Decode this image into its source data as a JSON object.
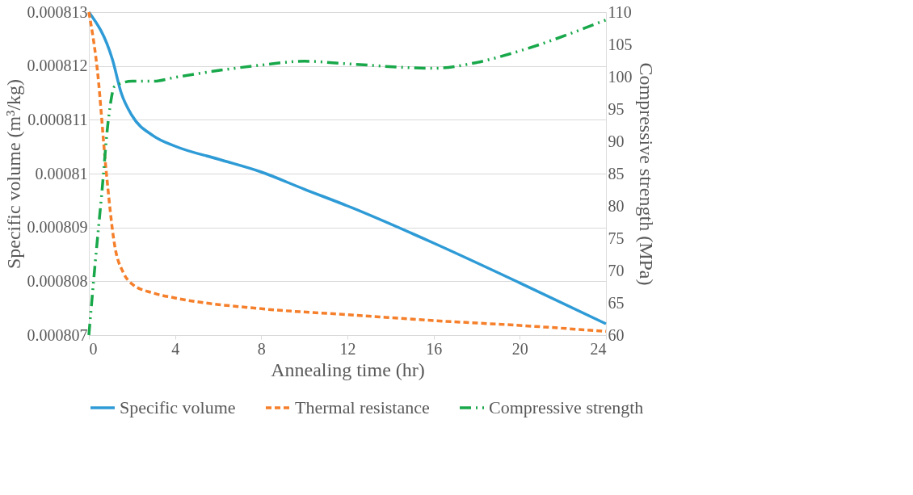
{
  "chart_data": {
    "type": "line",
    "xlabel": "Annealing time (hr)",
    "ylabel": "Specific volume (m³/kg)",
    "y2label": "Compressive strength (MPa)",
    "xlim": [
      0,
      24
    ],
    "xticks": [
      0,
      4,
      8,
      12,
      16,
      20,
      24
    ],
    "ylim": [
      0.000807,
      0.000813
    ],
    "yticks": [
      0.000807,
      0.000808,
      0.000809,
      0.00081,
      0.000811,
      0.000812,
      0.000813
    ],
    "y2lim": [
      60,
      110
    ],
    "y2ticks": [
      60,
      65,
      70,
      75,
      80,
      85,
      90,
      95,
      100,
      105,
      110
    ],
    "grid": "y",
    "legend": "bottom",
    "series": [
      {
        "name": "Specific volume",
        "color": "#2e9bd6",
        "line_style": "solid",
        "x": [
          0,
          1.1,
          1.5,
          2,
          3,
          4,
          6,
          8,
          10,
          12,
          16,
          20,
          24
        ],
        "values": [
          0.000813,
          0.00081211,
          0.0008115,
          0.00081108,
          0.0008107,
          0.00081051,
          0.00081027,
          0.00081003,
          0.00080971,
          0.0008094,
          0.00080871,
          0.00080797,
          0.00080721
        ]
      },
      {
        "name": "Thermal resistance",
        "color": "#f57f2a",
        "line_style": "dashed",
        "x": [
          0,
          0.4,
          0.8,
          1.2,
          1.6,
          2,
          3,
          4,
          8,
          12,
          16,
          20,
          24
        ],
        "values": [
          0.000813,
          0.0008119,
          0.00081006,
          0.00080866,
          0.00080816,
          0.00080795,
          0.00080778,
          0.00080769,
          0.00080749,
          0.00080738,
          0.00080727,
          0.00080718,
          0.00080707
        ]
      },
      {
        "name": "Compressive strength",
        "color": "#18a84a",
        "line_style": "dashdot",
        "axis": "y2",
        "x": [
          0,
          0.3,
          0.6,
          0.9,
          1.2,
          2,
          3,
          4,
          8,
          10,
          12,
          16,
          18,
          20,
          24
        ],
        "values": [
          60,
          71.4,
          82,
          93.2,
          98.5,
          99.3,
          99.3,
          99.9,
          101.8,
          102.4,
          102,
          101.3,
          102.2,
          104,
          108.8
        ]
      }
    ]
  }
}
